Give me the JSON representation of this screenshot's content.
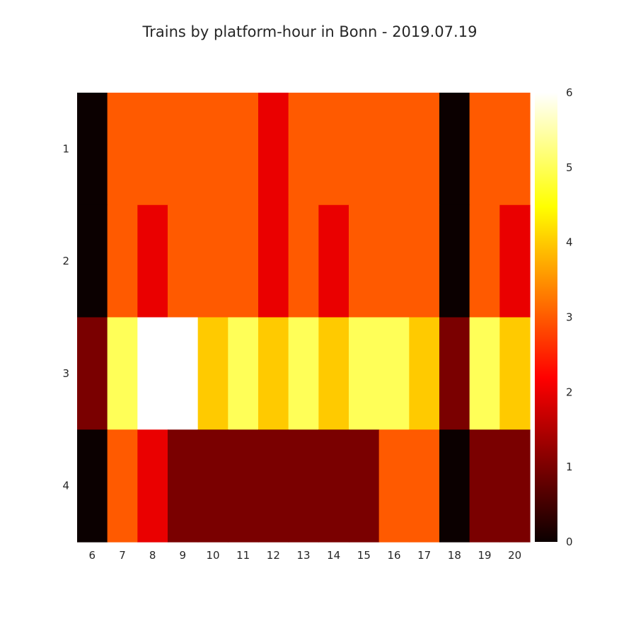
{
  "chart_data": {
    "type": "heatmap",
    "title": "Trains by platform-hour in Bonn - 2019.07.19",
    "x_categories": [
      "6",
      "7",
      "8",
      "9",
      "10",
      "11",
      "12",
      "13",
      "14",
      "15",
      "16",
      "17",
      "18",
      "19",
      "20"
    ],
    "y_categories": [
      "1",
      "2",
      "3",
      "4"
    ],
    "values": [
      [
        0,
        3,
        3,
        3,
        3,
        3,
        2,
        3,
        3,
        3,
        3,
        3,
        0,
        3,
        3
      ],
      [
        0,
        3,
        2,
        3,
        3,
        3,
        2,
        3,
        2,
        3,
        3,
        3,
        0,
        3,
        2
      ],
      [
        1,
        5,
        6,
        6,
        4,
        5,
        4,
        5,
        4,
        5,
        5,
        4,
        1,
        5,
        4
      ],
      [
        0,
        3,
        2,
        1,
        1,
        1,
        1,
        1,
        1,
        1,
        3,
        3,
        0,
        1,
        1
      ]
    ],
    "colorbar": {
      "min": 0,
      "max": 6,
      "ticks": [
        "0",
        "1",
        "2",
        "3",
        "4",
        "5",
        "6"
      ],
      "colormap": "hot"
    }
  }
}
